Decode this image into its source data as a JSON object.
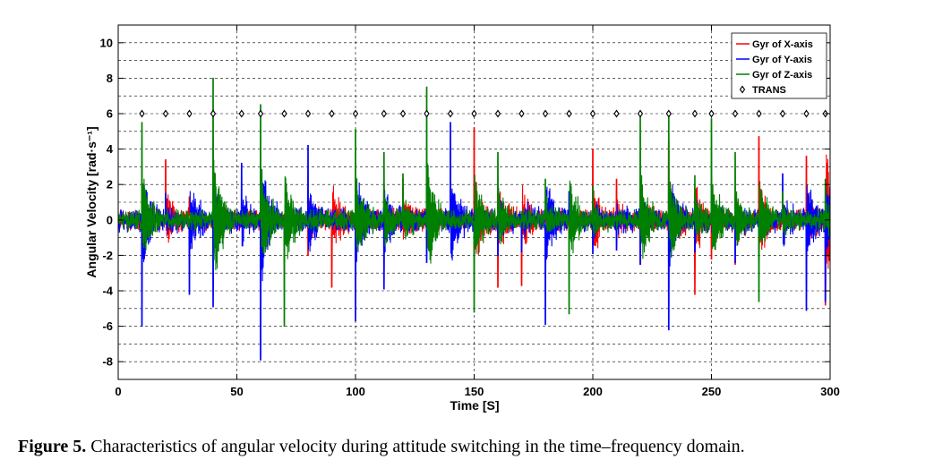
{
  "chart_data": {
    "type": "line",
    "xlabel": "Time [S]",
    "ylabel": "Angular Velocity [rad·s⁻¹]",
    "xlim": [
      0,
      300
    ],
    "ylim": [
      -9,
      11
    ],
    "x_ticks": [
      0,
      50,
      100,
      150,
      200,
      250,
      300
    ],
    "y_ticks": [
      -8,
      -6,
      -4,
      -2,
      0,
      2,
      4,
      6,
      8,
      10
    ],
    "grid": "on (dashed)",
    "legend_position": "top-right",
    "series": [
      {
        "name": "Gyr of X-axis",
        "color": "#ff0000",
        "spikes": [
          [
            10,
            1.2
          ],
          [
            20,
            3.4
          ],
          [
            30,
            1.3
          ],
          [
            40,
            -1.5
          ],
          [
            60,
            -1.8
          ],
          [
            80,
            -2.0
          ],
          [
            90,
            -3.8
          ],
          [
            112,
            2.0
          ],
          [
            120,
            2.3
          ],
          [
            150,
            5.2
          ],
          [
            160,
            -3.8
          ],
          [
            170,
            -3.7
          ],
          [
            200,
            4.0
          ],
          [
            210,
            2.3
          ],
          [
            220,
            -2.5
          ],
          [
            232,
            4.4
          ],
          [
            243,
            -4.2
          ],
          [
            250,
            -2.2
          ],
          [
            260,
            -2.5
          ],
          [
            270,
            4.7
          ],
          [
            290,
            3.6
          ],
          [
            298,
            4.4
          ],
          [
            298,
            -4.8
          ]
        ]
      },
      {
        "name": "Gyr of Y-axis",
        "color": "#0000ff",
        "spikes": [
          [
            10,
            -6.0
          ],
          [
            20,
            1.5
          ],
          [
            30,
            -4.2
          ],
          [
            40,
            -4.9
          ],
          [
            52,
            3.2
          ],
          [
            60,
            -7.9
          ],
          [
            70,
            -2.3
          ],
          [
            80,
            4.2
          ],
          [
            100,
            -5.7
          ],
          [
            112,
            -3.9
          ],
          [
            130,
            -2.4
          ],
          [
            140,
            5.5
          ],
          [
            160,
            -2.0
          ],
          [
            170,
            -1.8
          ],
          [
            180,
            -5.9
          ],
          [
            190,
            1.6
          ],
          [
            200,
            -1.9
          ],
          [
            210,
            -1.7
          ],
          [
            220,
            -2.5
          ],
          [
            232,
            -6.2
          ],
          [
            243,
            -1.8
          ],
          [
            250,
            2.0
          ],
          [
            260,
            -2.4
          ],
          [
            270,
            -2.2
          ],
          [
            280,
            2.6
          ],
          [
            290,
            -5.1
          ],
          [
            298,
            -4.6
          ]
        ]
      },
      {
        "name": "Gyr of Z-axis",
        "color": "#008000",
        "spikes": [
          [
            10,
            5.5
          ],
          [
            40,
            8.0
          ],
          [
            60,
            6.5
          ],
          [
            70,
            -6.0
          ],
          [
            100,
            5.1
          ],
          [
            112,
            3.8
          ],
          [
            120,
            2.6
          ],
          [
            130,
            7.5
          ],
          [
            150,
            -5.2
          ],
          [
            160,
            3.8
          ],
          [
            180,
            2.3
          ],
          [
            190,
            -5.3
          ],
          [
            200,
            1.9
          ],
          [
            220,
            5.9
          ],
          [
            232,
            6.0
          ],
          [
            243,
            2.5
          ],
          [
            250,
            5.7
          ],
          [
            260,
            3.8
          ],
          [
            270,
            -4.6
          ],
          [
            280,
            1.6
          ],
          [
            298,
            2.3
          ]
        ]
      },
      {
        "name": "TRANS",
        "marker": "diamond",
        "x": [
          10,
          20,
          30,
          40,
          52,
          60,
          70,
          80,
          90,
          100,
          112,
          120,
          130,
          140,
          150,
          160,
          170,
          180,
          190,
          200,
          210,
          220,
          232,
          243,
          250,
          260,
          270,
          280,
          290,
          298
        ],
        "y": [
          6,
          6,
          6,
          6,
          6,
          6,
          6,
          6,
          6,
          6,
          6,
          6,
          6,
          6,
          6,
          6,
          6,
          6,
          6,
          6,
          6,
          6,
          6,
          6,
          6,
          6,
          6,
          6,
          6,
          6
        ]
      }
    ]
  },
  "caption": {
    "label": "Figure 5.",
    "text": " Characteristics of angular velocity during attitude switching in the time–frequency domain."
  }
}
